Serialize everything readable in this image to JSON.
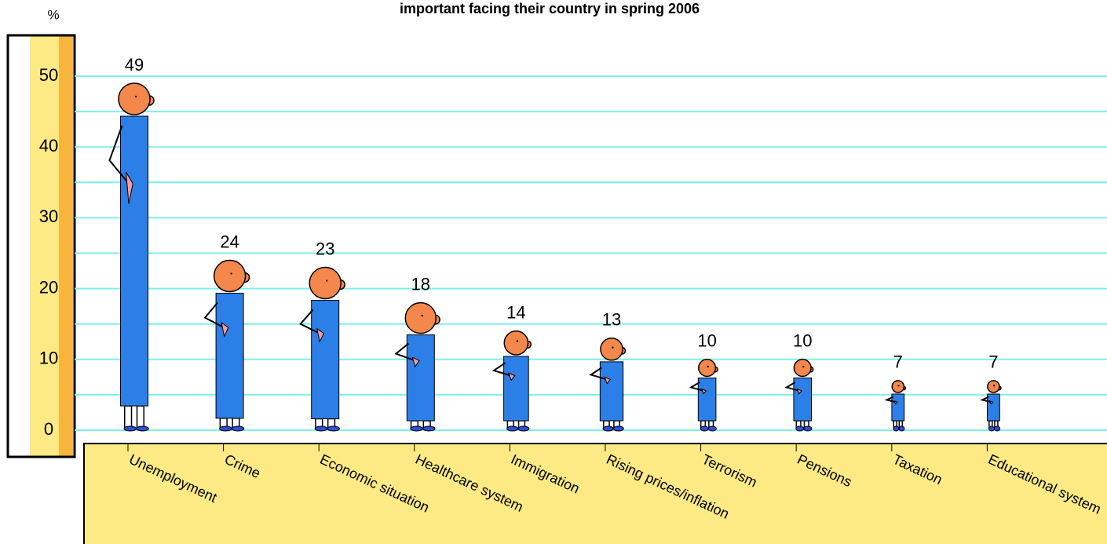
{
  "chart_data": {
    "type": "pictogram",
    "title": "important facing their country in spring 2006",
    "y_unit": "%",
    "categories": [
      "Unemployment",
      "Crime",
      "Economic situation",
      "Healthcare system",
      "Immigration",
      "Rising prices/inflation",
      "Terrorism",
      "Pensions",
      "Taxation",
      "Educational system"
    ],
    "values": [
      49,
      24,
      23,
      18,
      14,
      13,
      10,
      10,
      7,
      7
    ],
    "color": "#2d7fe8",
    "ylim": [
      0,
      50
    ],
    "yticks": [
      0,
      10,
      20,
      30,
      40,
      50
    ],
    "minor_yticks": [
      5,
      15,
      25,
      35,
      45
    ],
    "grid": true
  }
}
